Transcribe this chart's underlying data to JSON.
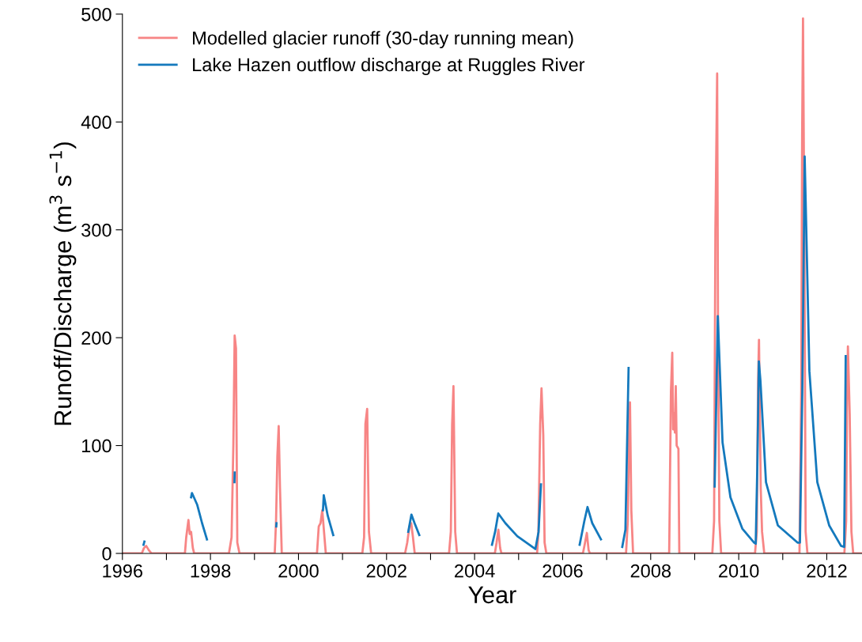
{
  "chart_data": {
    "type": "line",
    "xlabel": "Year",
    "ylabel": "Runoff/Discharge (m$^{3}$ s$^{−1}$)",
    "xlim": [
      1996,
      2012.8
    ],
    "ylim": [
      0,
      500
    ],
    "xticks": [
      1996,
      {
        "value": 1997,
        "label": null
      },
      1998,
      {
        "value": 1999,
        "label": null
      },
      2000,
      {
        "value": 2001,
        "label": null
      },
      2002,
      {
        "value": 2003,
        "label": null
      },
      2004,
      {
        "value": 2005,
        "label": null
      },
      2006,
      {
        "value": 2007,
        "label": null
      },
      2008,
      {
        "value": 2009,
        "label": null
      },
      2010,
      {
        "value": 2011,
        "label": null
      },
      2012
    ],
    "yticks": [
      0,
      100,
      200,
      300,
      400,
      500
    ],
    "grid": false,
    "legend": "top left",
    "marker": "none",
    "line_style": "solid",
    "series": [
      {
        "name": "Modelled glacier runoff (30-day running mean)",
        "color": "#f78585",
        "x": [
          1996.0,
          1996.44,
          1996.49,
          1996.54,
          1996.6,
          1996.66,
          1997.42,
          1997.45,
          1997.5,
          1997.53,
          1997.56,
          1997.6,
          1997.63,
          1998.42,
          1998.48,
          1998.52,
          1998.55,
          1998.58,
          1998.61,
          1998.66,
          1999.46,
          1999.49,
          1999.52,
          1999.55,
          1999.58,
          1999.62,
          2000.42,
          2000.46,
          2000.5,
          2000.54,
          2000.58,
          2000.62,
          2001.45,
          2001.49,
          2001.52,
          2001.56,
          2001.6,
          2001.65,
          2002.42,
          2002.47,
          2002.52,
          2002.56,
          2002.6,
          2002.64,
          2003.42,
          2003.46,
          2003.49,
          2003.52,
          2003.56,
          2003.6,
          2004.46,
          2004.5,
          2004.54,
          2004.58,
          2004.61,
          2005.42,
          2005.45,
          2005.49,
          2005.52,
          2005.56,
          2005.59,
          2005.63,
          2006.46,
          2006.5,
          2006.55,
          2006.59,
          2006.62,
          2007.44,
          2007.48,
          2007.51,
          2007.53,
          2007.56,
          2007.6,
          2008.42,
          2008.46,
          2008.49,
          2008.51,
          2008.53,
          2008.55,
          2008.57,
          2008.59,
          2008.63,
          2008.65,
          2009.4,
          2009.44,
          2009.47,
          2009.51,
          2009.53,
          2009.56,
          2009.6,
          2010.37,
          2010.41,
          2010.44,
          2010.46,
          2010.5,
          2010.53,
          2010.58,
          2011.38,
          2011.42,
          2011.44,
          2011.46,
          2011.49,
          2011.52,
          2011.56,
          2012.4,
          2012.44,
          2012.46,
          2012.48,
          2012.52,
          2012.56,
          2012.6,
          2012.8
        ],
        "values": [
          0,
          0,
          5,
          7,
          3,
          0,
          0,
          15,
          31,
          18,
          20,
          5,
          0,
          0,
          15,
          100,
          202,
          190,
          10,
          0,
          0,
          30,
          90,
          118,
          60,
          0,
          0,
          25,
          28,
          40,
          20,
          0,
          0,
          15,
          120,
          134,
          20,
          0,
          0,
          10,
          25,
          28,
          15,
          0,
          0,
          20,
          120,
          155,
          20,
          0,
          0,
          10,
          22,
          5,
          0,
          0,
          20,
          120,
          153,
          110,
          10,
          0,
          0,
          8,
          19,
          3,
          0,
          0,
          30,
          110,
          140,
          40,
          0,
          0,
          150,
          186,
          115,
          130,
          112,
          155,
          100,
          97,
          0,
          0,
          30,
          300,
          445,
          200,
          30,
          0,
          0,
          20,
          160,
          198,
          60,
          20,
          0,
          0,
          150,
          387,
          496,
          300,
          20,
          0,
          0,
          30,
          140,
          192,
          130,
          20,
          0,
          0
        ]
      },
      {
        "name": "Lake Hazen outflow discharge at Ruggles River",
        "color": "#1479bd",
        "x": [
          1996.48,
          1996.5,
          1996.51,
          1997.56,
          1997.58,
          1997.7,
          1997.81,
          1997.92,
          1997.95,
          1998.545,
          1998.55,
          1998.56,
          1999.495,
          1999.5,
          1999.51,
          2000.556,
          2000.574,
          2000.664,
          2000.789,
          2000.8,
          2002.493,
          2002.565,
          2002.637,
          2002.744,
          2002.76,
          2004.395,
          2004.466,
          2004.538,
          2004.7,
          2004.969,
          2005.381,
          2005.453,
          2005.507,
          2005.52,
          2006.386,
          2006.493,
          2006.565,
          2006.673,
          2006.87,
          2006.88,
          2007.354,
          2007.426,
          2007.498,
          2007.51,
          2009.453,
          2009.525,
          2009.632,
          2009.812,
          2010.081,
          2010.35,
          2010.386,
          2010.422,
          2010.457,
          2010.493,
          2010.619,
          2010.888,
          2011.336,
          2011.39,
          2011.444,
          2011.498,
          2011.605,
          2011.785,
          2012.054,
          2012.323,
          2012.395,
          2012.43
        ],
        "values": [
          8,
          11,
          null,
          52,
          56,
          45,
          28,
          13,
          null,
          66,
          75,
          null,
          25,
          28,
          null,
          40,
          54,
          35,
          17,
          null,
          20,
          36,
          28,
          17,
          null,
          8,
          20,
          37,
          28,
          16,
          4,
          20,
          64,
          null,
          8,
          30,
          43,
          28,
          13,
          null,
          6,
          22,
          172,
          null,
          62,
          220,
          103,
          52,
          23,
          10,
          9,
          80,
          178,
          160,
          66,
          26,
          10,
          10,
          150,
          368,
          169,
          66,
          26,
          7,
          6,
          183
        ]
      }
    ]
  }
}
